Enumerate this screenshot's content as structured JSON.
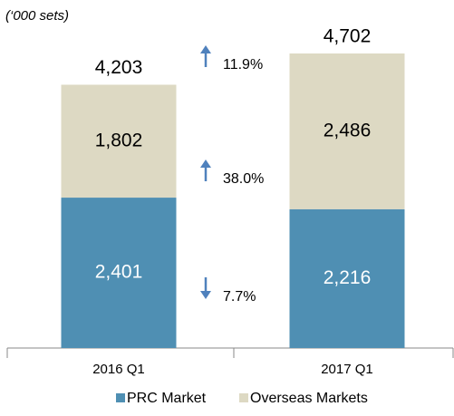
{
  "chart_data": {
    "type": "bar",
    "stacked": true,
    "subtitle": "(‘000 sets)",
    "categories": [
      "2016 Q1",
      "2017 Q1"
    ],
    "series": [
      {
        "name": "PRC Market",
        "color": "#4f8fb3",
        "label_color": "#ffffff",
        "values": [
          2401,
          2216
        ],
        "value_labels": [
          "2,401",
          "2,216"
        ]
      },
      {
        "name": "Overseas Markets",
        "color": "#ddd9c3",
        "label_color": "#000000",
        "values": [
          1802,
          2486
        ],
        "value_labels": [
          "1,802",
          "2,486"
        ]
      }
    ],
    "totals": [
      4203,
      4702
    ],
    "total_labels": [
      "4,203",
      "4,702"
    ],
    "changes": [
      {
        "value": 11.9,
        "label": "11.9%",
        "direction": "up"
      },
      {
        "value": 38.0,
        "label": "38.0%",
        "direction": "up"
      },
      {
        "value": 7.7,
        "label": "7.7%",
        "direction": "down"
      }
    ],
    "arrow_color": "#4f81bd"
  }
}
